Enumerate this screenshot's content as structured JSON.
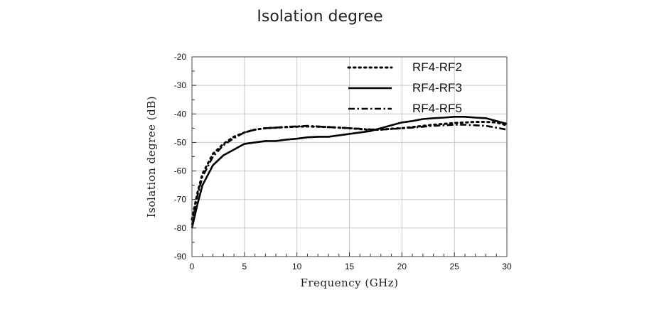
{
  "chart_data": {
    "type": "line",
    "title": "Isolation degree",
    "xlabel": "Frequency (GHz)",
    "ylabel": "Isolation degree (dB)",
    "xlim": [
      0,
      30
    ],
    "ylim": [
      -90,
      -20
    ],
    "xticks": [
      0,
      5,
      10,
      15,
      20,
      25,
      30
    ],
    "yticks": [
      -20,
      -30,
      -40,
      -50,
      -60,
      -70,
      -80,
      -90
    ],
    "grid": true,
    "legend_position": "top-right",
    "series": [
      {
        "name": "RF4-RF2",
        "style": "dotted",
        "x": [
          0,
          0.5,
          1,
          2,
          3,
          4,
          5,
          6,
          7,
          8,
          9,
          10,
          11,
          12,
          13,
          14,
          15,
          16,
          17,
          18,
          19,
          20,
          21,
          22,
          23,
          24,
          25,
          26,
          27,
          28,
          29,
          30
        ],
        "y": [
          -77,
          -68,
          -61,
          -54,
          -50.5,
          -48,
          -46.5,
          -45.5,
          -45,
          -44.8,
          -44.6,
          -44.5,
          -44.4,
          -44.5,
          -44.6,
          -44.8,
          -45,
          -45.3,
          -45.6,
          -45.5,
          -45.2,
          -45,
          -44.6,
          -44.2,
          -43.8,
          -43.5,
          -43.2,
          -43,
          -42.8,
          -42.8,
          -43,
          -44
        ]
      },
      {
        "name": "RF4-RF3",
        "style": "solid",
        "x": [
          0,
          0.5,
          1,
          2,
          3,
          4,
          5,
          6,
          7,
          8,
          9,
          10,
          11,
          12,
          13,
          14,
          15,
          16,
          17,
          18,
          19,
          20,
          21,
          22,
          23,
          24,
          25,
          26,
          27,
          28,
          29,
          30
        ],
        "y": [
          -80,
          -72,
          -65,
          -58,
          -54.5,
          -52.5,
          -50.5,
          -50,
          -49.5,
          -49.5,
          -49,
          -48.7,
          -48.2,
          -48,
          -48,
          -47.5,
          -47,
          -46.5,
          -46,
          -45,
          -44,
          -43,
          -42.5,
          -41.8,
          -41.5,
          -41.3,
          -41,
          -41,
          -41.3,
          -41.5,
          -42.5,
          -43.5
        ]
      },
      {
        "name": "RF4-RF5",
        "style": "dash-dot",
        "x": [
          0,
          0.5,
          1,
          2,
          3,
          4,
          5,
          6,
          7,
          8,
          9,
          10,
          11,
          12,
          13,
          14,
          15,
          16,
          17,
          18,
          19,
          20,
          21,
          22,
          23,
          24,
          25,
          26,
          27,
          28,
          29,
          30
        ],
        "y": [
          -79,
          -69,
          -62,
          -55,
          -51,
          -48.5,
          -46.5,
          -45.5,
          -45,
          -44.8,
          -44.5,
          -44.4,
          -44.2,
          -44.4,
          -44.6,
          -44.8,
          -45,
          -45.2,
          -45.4,
          -45.5,
          -45.3,
          -45,
          -44.8,
          -44.5,
          -44.2,
          -44,
          -43.8,
          -43.8,
          -44,
          -44.2,
          -44.8,
          -45.5
        ]
      }
    ]
  }
}
